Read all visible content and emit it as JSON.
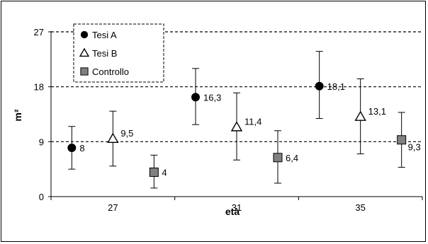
{
  "chart_data": {
    "type": "scatter",
    "title": "",
    "xlabel": "età",
    "ylabel": "m²",
    "categories": [
      "27",
      "31",
      "35"
    ],
    "ylim": [
      0,
      27
    ],
    "yticks": [
      "0",
      "9",
      "18",
      "27"
    ],
    "grid": "dashed horizontal lines at 9, 18, 27",
    "legend_position": "top-left",
    "series": [
      {
        "name": "Tesi A",
        "marker": "circle",
        "color": "#000000",
        "values": [
          8,
          16.3,
          18.1
        ],
        "labels": [
          "8",
          "16,3",
          "18,1"
        ],
        "error_low": [
          4.5,
          11.8,
          12.8
        ],
        "error_high": [
          11.5,
          21,
          23.8
        ]
      },
      {
        "name": "Tesi B",
        "marker": "triangle-open",
        "color": "#000000",
        "values": [
          9.5,
          11.4,
          13.1
        ],
        "labels": [
          "9,5",
          "11,4",
          "13,1"
        ],
        "error_low": [
          5,
          6,
          7
        ],
        "error_high": [
          14,
          17,
          19.3
        ]
      },
      {
        "name": "Controllo",
        "marker": "square",
        "color": "#808080",
        "values": [
          4,
          6.4,
          9.3
        ],
        "labels": [
          "4",
          "6,4",
          "9,3"
        ],
        "error_low": [
          1.4,
          2.2,
          4.8
        ],
        "error_high": [
          6.8,
          10.8,
          13.8
        ]
      }
    ]
  }
}
